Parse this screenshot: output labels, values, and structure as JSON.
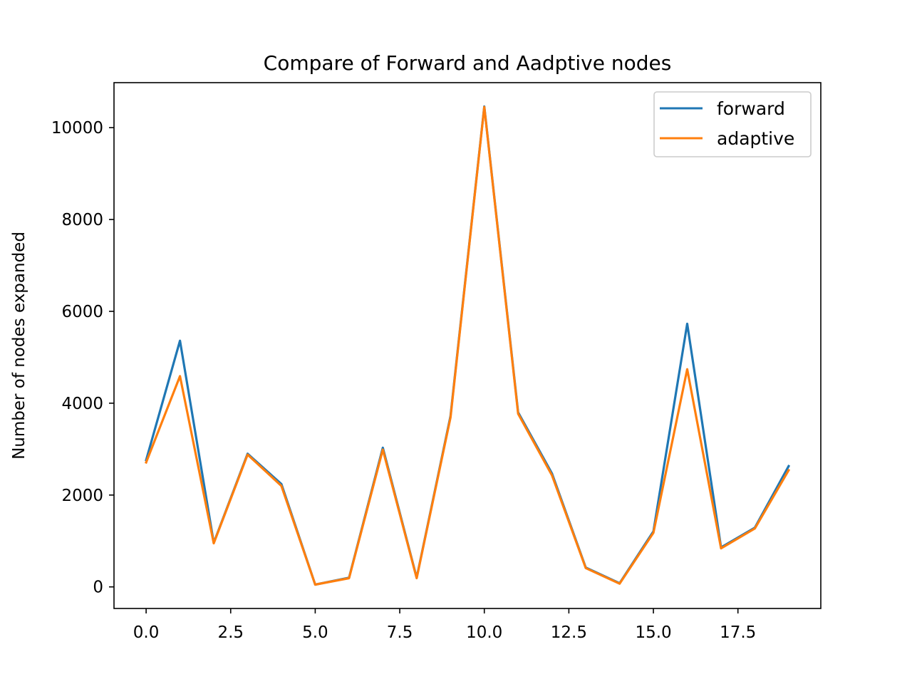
{
  "chart_data": {
    "type": "line",
    "title": "Compare of Forward and Aadptive nodes",
    "xlabel": "",
    "ylabel": "Number of nodes expanded",
    "x": [
      0,
      1,
      2,
      3,
      4,
      5,
      6,
      7,
      8,
      9,
      10,
      11,
      12,
      13,
      14,
      15,
      16,
      17,
      18,
      19
    ],
    "xlim": [
      -0.95,
      19.95
    ],
    "ylim": [
      -470,
      10980
    ],
    "xticks": [
      0.0,
      2.5,
      5.0,
      7.5,
      10.0,
      12.5,
      15.0,
      17.5
    ],
    "xtick_labels": [
      "0.0",
      "2.5",
      "5.0",
      "7.5",
      "10.0",
      "12.5",
      "15.0",
      "17.5"
    ],
    "yticks": [
      0,
      2000,
      4000,
      6000,
      8000,
      10000
    ],
    "ytick_labels": [
      "0",
      "2000",
      "4000",
      "6000",
      "8000",
      "10000"
    ],
    "grid": false,
    "legend_position": "upper right",
    "series": [
      {
        "name": "forward",
        "color": "#1f77b4",
        "values": [
          2760,
          5360,
          960,
          2900,
          2240,
          50,
          200,
          3030,
          200,
          3720,
          10460,
          3800,
          2470,
          420,
          80,
          1210,
          5730,
          860,
          1290,
          2630
        ]
      },
      {
        "name": "adaptive",
        "color": "#ff7f0e",
        "values": [
          2710,
          4590,
          950,
          2880,
          2200,
          50,
          190,
          2990,
          190,
          3690,
          10450,
          3770,
          2430,
          410,
          70,
          1180,
          4740,
          840,
          1270,
          2540
        ]
      }
    ]
  }
}
